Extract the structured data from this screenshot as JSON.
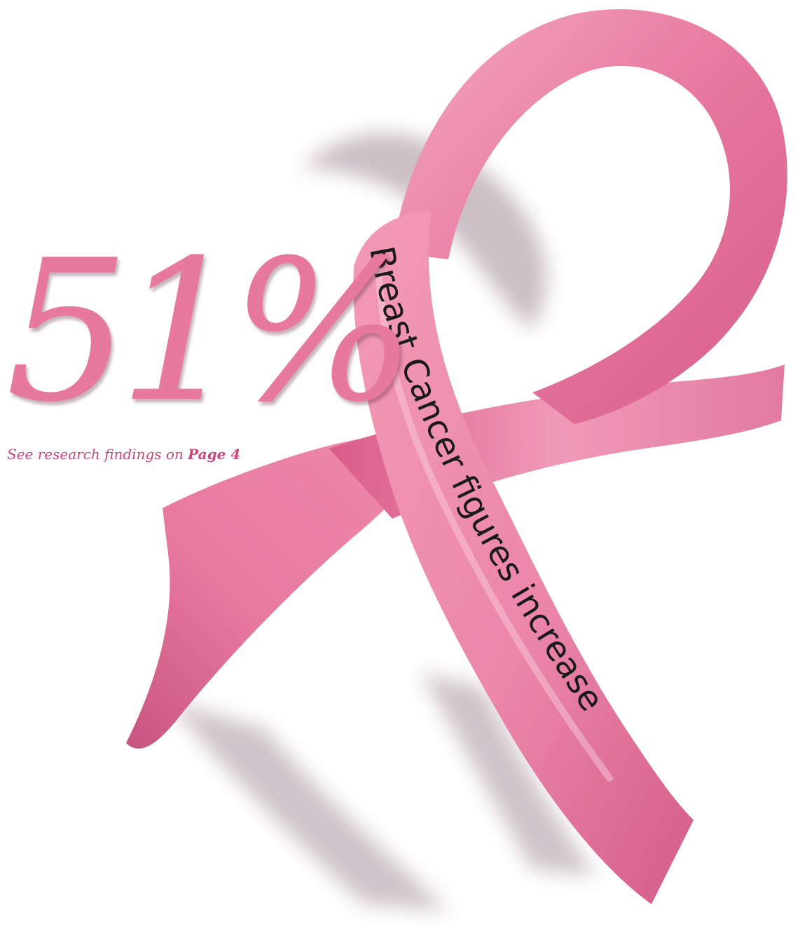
{
  "headline": {
    "percent": "51%"
  },
  "caption": {
    "prefix": "See research findings on ",
    "page_ref": "Page 4"
  },
  "ribbon": {
    "text": "Breast Cancer figures increase"
  },
  "colors": {
    "ribbon_pink": "#e77a9f",
    "ribbon_dark": "#c8507a",
    "ribbon_light": "#f6b3c8",
    "headline_pink": "#e7799f",
    "caption_pink": "#c9477a",
    "background": "#ffffff"
  }
}
